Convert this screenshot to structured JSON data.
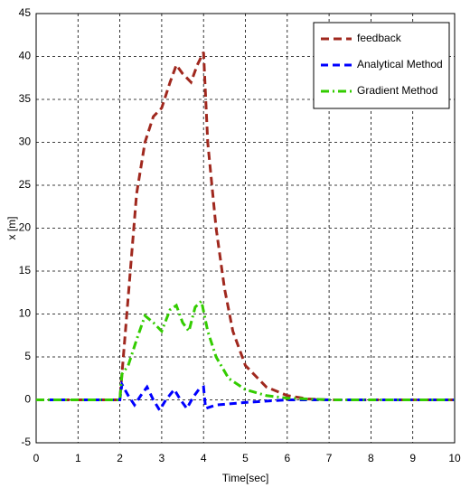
{
  "chart_data": {
    "type": "line",
    "xlabel": "Time[sec]",
    "ylabel": "x [m]",
    "xlim": [
      0,
      10
    ],
    "xticks": [
      0,
      1,
      2,
      3,
      4,
      5,
      6,
      7,
      8,
      9,
      10
    ],
    "ylim": [
      -5,
      45
    ],
    "yticks": [
      -5,
      0,
      5,
      10,
      15,
      20,
      25,
      30,
      35,
      40,
      45
    ],
    "grid": true,
    "legend": "upper right",
    "series": [
      {
        "name": "feedback",
        "color": "#a0281e",
        "dash": "9,5",
        "x": [
          0,
          2,
          2.05,
          2.2,
          2.4,
          2.6,
          2.8,
          3,
          3.2,
          3.35,
          3.5,
          3.7,
          3.85,
          4,
          4.1,
          4.3,
          4.5,
          4.7,
          5,
          5.5,
          6,
          6.5,
          7,
          10
        ],
        "values": [
          0,
          0,
          3,
          12,
          24,
          30,
          33,
          34,
          37,
          39,
          38,
          37,
          39,
          40.5,
          30,
          20,
          13,
          8,
          4,
          1.5,
          0.5,
          0.1,
          0,
          0
        ]
      },
      {
        "name": "Analytical Method",
        "color": "#0000ff",
        "dash": "8,5",
        "x": [
          0,
          2,
          2.05,
          2.2,
          2.35,
          2.5,
          2.65,
          2.8,
          2.95,
          3.1,
          3.3,
          3.45,
          3.6,
          3.75,
          3.9,
          4,
          4.05,
          4.3,
          5,
          6,
          10
        ],
        "values": [
          0,
          0,
          1.8,
          0.5,
          -0.6,
          0.5,
          1.5,
          0,
          -1.2,
          0,
          1.2,
          0,
          -1,
          0.3,
          1.3,
          1.5,
          -1,
          -0.6,
          -0.3,
          0,
          0
        ]
      },
      {
        "name": "Gradient Method",
        "color": "#33cc00",
        "dash": "9,4,2,4",
        "x": [
          0,
          2,
          2.05,
          2.2,
          2.4,
          2.6,
          2.8,
          3,
          3.2,
          3.35,
          3.5,
          3.65,
          3.8,
          3.95,
          4.1,
          4.3,
          4.6,
          5,
          5.5,
          6,
          7,
          10
        ],
        "values": [
          0,
          0,
          3,
          4,
          7,
          9.8,
          9,
          8,
          10.5,
          11,
          9,
          8,
          10.8,
          11.5,
          8,
          5,
          2.5,
          1.2,
          0.5,
          0.2,
          0,
          0
        ]
      }
    ]
  }
}
